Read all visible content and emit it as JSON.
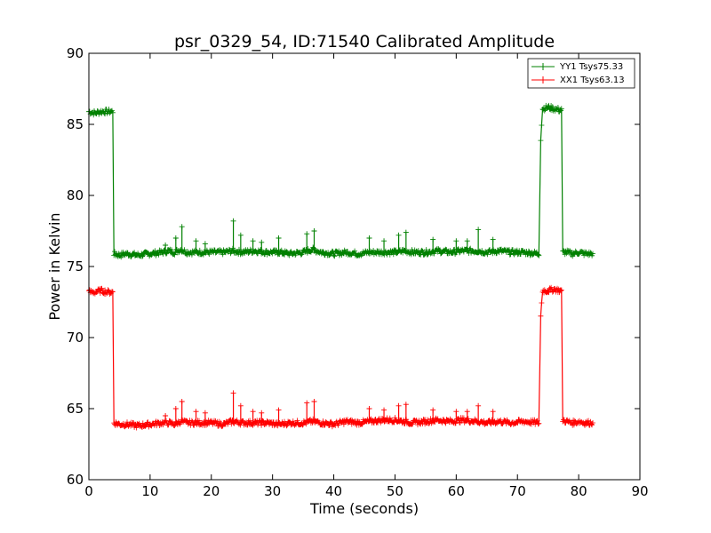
{
  "chart_data": {
    "type": "line",
    "title": "psr_0329_54, ID:71540 Calibrated Amplitude",
    "xlabel": "Time (seconds)",
    "ylabel": "Power in Kelvin",
    "xlim": [
      0,
      90
    ],
    "ylim": [
      60,
      90
    ],
    "xticks": [
      0,
      10,
      20,
      30,
      40,
      50,
      60,
      70,
      80,
      90
    ],
    "yticks": [
      60,
      65,
      70,
      75,
      80,
      85,
      90
    ],
    "grid": false,
    "legend_position": "top-right",
    "marker": "+",
    "series": [
      {
        "name": "YY1 Tsys75.33",
        "color": "#008000",
        "x": [
          0,
          1,
          2,
          3,
          3.9,
          4.1,
          5,
          6,
          8,
          10,
          12,
          13,
          14,
          15,
          16,
          18,
          20,
          22,
          23.5,
          25,
          27,
          29,
          31,
          33,
          35,
          36.5,
          38,
          40,
          42,
          44,
          46,
          48,
          50,
          51.5,
          53,
          55,
          57,
          59,
          61,
          63.5,
          65,
          67,
          69,
          71,
          73.5,
          73.8,
          74.1,
          75,
          76,
          77,
          77.2,
          77.4,
          78,
          79,
          80,
          81,
          82.3
        ],
        "y": [
          85.9,
          85.8,
          85.9,
          85.9,
          85.9,
          75.9,
          75.8,
          75.9,
          75.8,
          75.9,
          76.0,
          76.1,
          76.0,
          76.2,
          76.0,
          76.0,
          76.0,
          76.0,
          76.1,
          76.0,
          76.1,
          76.0,
          76.0,
          75.9,
          76.0,
          76.2,
          76.0,
          75.9,
          76.0,
          75.9,
          76.0,
          76.0,
          76.0,
          76.1,
          76.0,
          76.0,
          76.1,
          76.0,
          76.1,
          76.1,
          76.0,
          76.1,
          76.0,
          76.0,
          75.9,
          84.0,
          86.1,
          86.2,
          86.1,
          86.0,
          86.0,
          76.0,
          76.0,
          75.9,
          76.0,
          75.9,
          75.9
        ]
      },
      {
        "name": "XX1 Tsys63.13",
        "color": "#ff0000",
        "x": [
          0,
          1,
          2,
          3,
          3.9,
          4.1,
          5,
          6,
          8,
          10,
          12,
          13,
          14,
          15,
          16,
          18,
          20,
          22,
          23.5,
          25,
          27,
          29,
          31,
          33,
          35,
          36.5,
          38,
          40,
          42,
          44,
          46,
          48,
          50,
          51.5,
          53,
          55,
          57,
          59,
          61,
          63.5,
          65,
          67,
          69,
          71,
          73.5,
          73.8,
          74.1,
          75,
          76,
          77,
          77.2,
          77.4,
          78,
          79,
          80,
          81,
          82.3
        ],
        "y": [
          73.2,
          73.2,
          73.3,
          73.2,
          73.2,
          64.0,
          63.9,
          63.9,
          63.8,
          63.9,
          64.0,
          64.0,
          63.9,
          64.1,
          64.0,
          64.0,
          64.0,
          63.9,
          64.1,
          64.0,
          64.0,
          64.0,
          63.9,
          64.0,
          64.0,
          64.1,
          64.0,
          63.9,
          64.1,
          64.0,
          64.1,
          64.2,
          64.2,
          64.1,
          64.0,
          64.1,
          64.2,
          64.1,
          64.2,
          64.1,
          64.0,
          64.1,
          64.0,
          64.1,
          64.0,
          71.5,
          73.3,
          73.3,
          73.4,
          73.3,
          73.2,
          64.2,
          64.1,
          64.0,
          64.1,
          64.0,
          64.0
        ]
      }
    ],
    "spikes": [
      {
        "series": 0,
        "x": [
          12.5,
          14.2,
          15.2,
          17.5,
          19.0,
          23.6,
          24.8,
          26.8,
          28.2,
          31.0,
          35.6,
          36.8,
          45.8,
          48.2,
          50.6,
          51.8,
          56.2,
          60.0,
          61.8,
          63.6,
          66.0
        ],
        "y": [
          76.5,
          77.0,
          77.8,
          76.8,
          76.6,
          78.2,
          77.2,
          76.8,
          76.7,
          77.0,
          77.3,
          77.5,
          77.0,
          76.8,
          77.2,
          77.4,
          76.9,
          76.8,
          76.8,
          77.6,
          76.9
        ]
      },
      {
        "series": 1,
        "x": [
          12.5,
          14.2,
          15.2,
          17.5,
          19.0,
          23.6,
          24.8,
          26.8,
          28.2,
          31.0,
          35.6,
          36.8,
          45.8,
          48.2,
          50.6,
          51.8,
          56.2,
          60.0,
          61.8,
          63.6,
          66.0
        ],
        "y": [
          64.5,
          65.0,
          65.5,
          64.8,
          64.7,
          66.1,
          65.2,
          64.8,
          64.7,
          64.9,
          65.4,
          65.5,
          65.0,
          64.9,
          65.2,
          65.3,
          64.9,
          64.8,
          64.8,
          65.2,
          64.8
        ]
      }
    ]
  }
}
